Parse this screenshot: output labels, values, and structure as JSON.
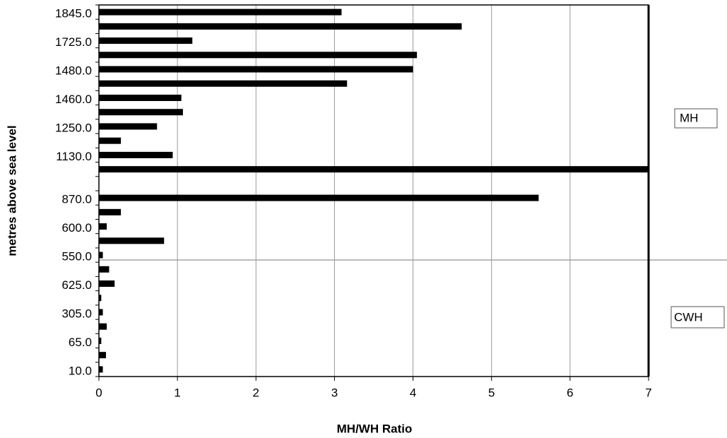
{
  "chart_data": {
    "type": "bar",
    "orientation": "horizontal",
    "x_label": "MH/WH Ratio",
    "y_label": "metres above sea level",
    "categories": [
      "1845.0",
      null,
      "1725.0",
      null,
      "1480.0",
      null,
      "1460.0",
      null,
      "1250.0",
      null,
      "1130.0",
      null,
      null,
      "870.0",
      null,
      "600.0",
      null,
      "550.0",
      null,
      "625.0",
      null,
      "305.0",
      null,
      "65.0",
      null,
      "10.0"
    ],
    "values": [
      3.09,
      4.62,
      1.19,
      4.05,
      4.0,
      3.16,
      1.05,
      1.07,
      0.74,
      0.28,
      0.94,
      7,
      null,
      5.6,
      0.28,
      0.1,
      0.83,
      0.05,
      0.13,
      0.2,
      0.03,
      0.05,
      0.1,
      0.03,
      0.09,
      0.05
    ],
    "color": "#000000",
    "xlim": [
      0,
      7
    ],
    "xticks": [
      0,
      1,
      2,
      3,
      4,
      5,
      6,
      7
    ],
    "grid": true,
    "annotations": [
      "MH",
      "CWH"
    ]
  }
}
